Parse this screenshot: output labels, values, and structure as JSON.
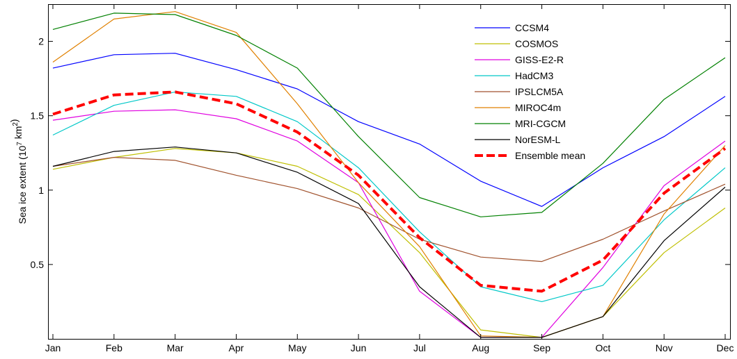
{
  "chart_data": {
    "type": "line",
    "xlabel": "",
    "ylabel": {
      "prefix": "Sea ice extent (10",
      "exp1": "7",
      "mid": " km",
      "exp2": "2",
      "suffix": ")"
    },
    "categories": [
      "Jan",
      "Feb",
      "Mar",
      "Apr",
      "May",
      "Jun",
      "Jul",
      "Aug",
      "Sep",
      "Oct",
      "Nov",
      "Dec"
    ],
    "ylim": [
      0,
      2.25
    ],
    "yticks": [
      0.5,
      1,
      1.5,
      2
    ],
    "ytick_labels": [
      "0.5",
      "1",
      "1.5",
      "2"
    ],
    "grid": false,
    "legend_position": "top-right",
    "series": [
      {
        "name": "CCSM4",
        "color": "#0000ff",
        "dashed": false,
        "values": [
          1.82,
          1.91,
          1.92,
          1.81,
          1.68,
          1.46,
          1.31,
          1.06,
          0.89,
          1.15,
          1.36,
          1.63
        ]
      },
      {
        "name": "COSMOS",
        "color": "#bfbf00",
        "dashed": false,
        "values": [
          1.14,
          1.22,
          1.28,
          1.25,
          1.16,
          0.97,
          0.58,
          0.06,
          0.01,
          0.15,
          0.58,
          0.88
        ]
      },
      {
        "name": "GISS-E2-R",
        "color": "#e000e0",
        "dashed": false,
        "values": [
          1.47,
          1.53,
          1.54,
          1.48,
          1.33,
          1.05,
          0.32,
          0.01,
          0.01,
          0.48,
          1.03,
          1.33
        ]
      },
      {
        "name": "HadCM3",
        "color": "#00c8c8",
        "dashed": false,
        "values": [
          1.37,
          1.57,
          1.66,
          1.63,
          1.46,
          1.15,
          0.72,
          0.35,
          0.25,
          0.36,
          0.8,
          1.15
        ]
      },
      {
        "name": "IPSLCM5A",
        "color": "#a0522d",
        "dashed": false,
        "values": [
          1.16,
          1.22,
          1.2,
          1.1,
          1.01,
          0.88,
          0.67,
          0.55,
          0.52,
          0.67,
          0.86,
          1.04
        ]
      },
      {
        "name": "MIROC4m",
        "color": "#e08000",
        "dashed": false,
        "values": [
          1.86,
          2.15,
          2.2,
          2.06,
          1.58,
          1.05,
          0.62,
          0.02,
          0.01,
          0.15,
          0.84,
          1.3
        ]
      },
      {
        "name": "MRI-CGCM",
        "color": "#008000",
        "dashed": false,
        "values": [
          2.08,
          2.19,
          2.18,
          2.04,
          1.82,
          1.36,
          0.95,
          0.82,
          0.85,
          1.18,
          1.61,
          1.89
        ]
      },
      {
        "name": "NorESM-L",
        "color": "#000000",
        "dashed": false,
        "values": [
          1.16,
          1.26,
          1.29,
          1.25,
          1.12,
          0.91,
          0.35,
          0.01,
          0.01,
          0.15,
          0.66,
          1.02
        ]
      },
      {
        "name": "Ensemble mean",
        "color": "#ff0000",
        "dashed": true,
        "values": [
          1.51,
          1.64,
          1.66,
          1.58,
          1.39,
          1.1,
          0.68,
          0.36,
          0.32,
          0.53,
          0.98,
          1.28
        ]
      }
    ]
  }
}
